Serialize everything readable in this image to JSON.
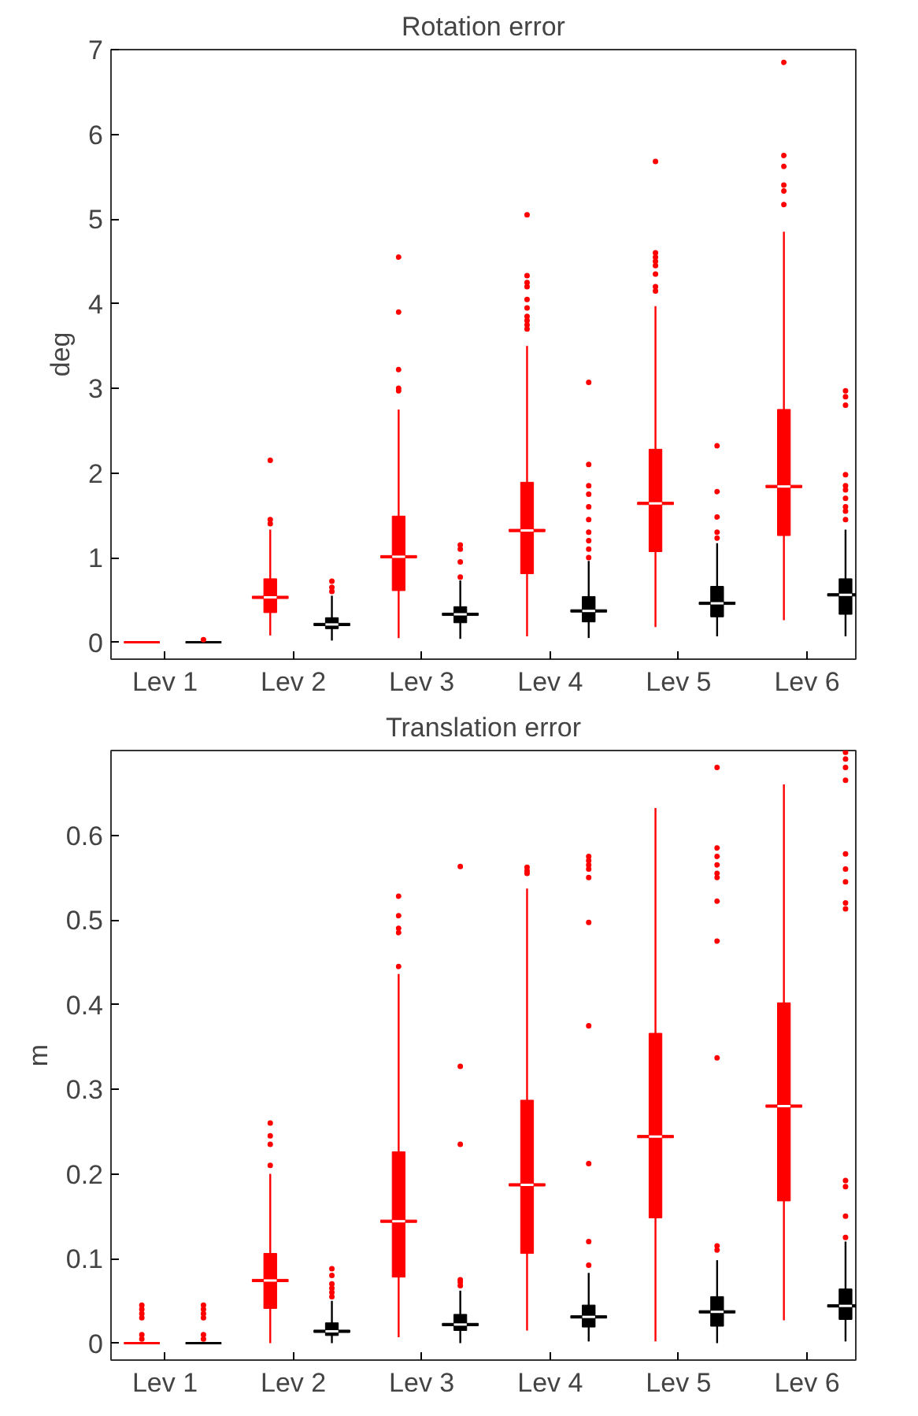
{
  "chart_data": [
    {
      "type": "box",
      "title": "Rotation error",
      "ylabel": "deg",
      "categories": [
        "Lev 1",
        "Lev 2",
        "Lev 3",
        "Lev 4",
        "Lev 5",
        "Lev 6"
      ],
      "ylim": [
        -0.2,
        7
      ],
      "yticks": [
        0,
        1,
        2,
        3,
        4,
        5,
        6,
        7
      ],
      "grid": false,
      "series": [
        {
          "color": "#ff0000",
          "boxes": [
            {
              "low": 0,
              "q1": 0,
              "median": 0,
              "q3": 0,
              "high": 0
            },
            {
              "low": 0.08,
              "q1": 0.35,
              "median": 0.53,
              "q3": 0.75,
              "high": 1.33,
              "outliers": [
                1.4,
                1.45,
                2.15
              ]
            },
            {
              "low": 0.05,
              "q1": 0.61,
              "median": 1.01,
              "q3": 1.49,
              "high": 2.75,
              "outliers": [
                2.97,
                3.0,
                3.22,
                3.9,
                4.55
              ]
            },
            {
              "low": 0.07,
              "q1": 0.81,
              "median": 1.32,
              "q3": 1.89,
              "high": 3.5,
              "outliers": [
                3.7,
                3.75,
                3.8,
                3.85,
                3.95,
                4.05,
                4.2,
                4.25,
                4.33,
                5.05
              ]
            },
            {
              "low": 0.18,
              "q1": 1.07,
              "median": 1.64,
              "q3": 2.28,
              "high": 3.97,
              "outliers": [
                4.15,
                4.2,
                4.35,
                4.45,
                4.5,
                4.55,
                4.6,
                5.68
              ]
            },
            {
              "low": 0.26,
              "q1": 1.26,
              "median": 1.84,
              "q3": 2.75,
              "high": 4.85,
              "outliers": [
                5.17,
                5.33,
                5.4,
                5.62,
                5.75,
                6.85
              ]
            }
          ]
        },
        {
          "color": "#000000",
          "boxes": [
            {
              "low": 0,
              "q1": 0,
              "median": 0,
              "q3": 0,
              "high": 0,
              "outliers": [
                0.03
              ]
            },
            {
              "low": 0.02,
              "q1": 0.16,
              "median": 0.21,
              "q3": 0.29,
              "high": 0.55,
              "outliers": [
                0.6,
                0.65,
                0.72
              ]
            },
            {
              "low": 0.04,
              "q1": 0.23,
              "median": 0.33,
              "q3": 0.42,
              "high": 0.73,
              "outliers": [
                0.77,
                0.95,
                1.1,
                1.15
              ]
            },
            {
              "low": 0.05,
              "q1": 0.24,
              "median": 0.37,
              "q3": 0.54,
              "high": 0.96,
              "outliers": [
                1.0,
                1.1,
                1.2,
                1.3,
                1.45,
                1.6,
                1.75,
                1.85,
                2.1,
                3.07
              ]
            },
            {
              "low": 0.07,
              "q1": 0.3,
              "median": 0.46,
              "q3": 0.66,
              "high": 1.17,
              "outliers": [
                1.23,
                1.3,
                1.48,
                1.78,
                2.32
              ]
            },
            {
              "low": 0.07,
              "q1": 0.33,
              "median": 0.56,
              "q3": 0.75,
              "high": 1.33,
              "outliers": [
                1.45,
                1.55,
                1.6,
                1.7,
                1.8,
                1.85,
                1.98,
                2.8,
                2.9,
                2.97
              ]
            }
          ]
        }
      ]
    },
    {
      "type": "box",
      "title": "Translation error",
      "ylabel": "m",
      "categories": [
        "Lev 1",
        "Lev 2",
        "Lev 3",
        "Lev 4",
        "Lev 5",
        "Lev 6"
      ],
      "ylim": [
        -0.02,
        0.7
      ],
      "yticks": [
        0,
        0.1,
        0.2,
        0.3,
        0.4,
        0.5,
        0.6
      ],
      "grid": false,
      "series": [
        {
          "color": "#ff0000",
          "boxes": [
            {
              "low": 0,
              "q1": 0,
              "median": 0,
              "q3": 0,
              "high": 0,
              "outliers": [
                0.005,
                0.01,
                0.03,
                0.035,
                0.04,
                0.045
              ]
            },
            {
              "low": 0,
              "q1": 0.041,
              "median": 0.074,
              "q3": 0.106,
              "high": 0.2,
              "outliers": [
                0.21,
                0.235,
                0.245,
                0.26
              ]
            },
            {
              "low": 0.007,
              "q1": 0.078,
              "median": 0.144,
              "q3": 0.226,
              "high": 0.436,
              "outliers": [
                0.445,
                0.485,
                0.49,
                0.505,
                0.528
              ]
            },
            {
              "low": 0.015,
              "q1": 0.106,
              "median": 0.187,
              "q3": 0.287,
              "high": 0.537,
              "outliers": [
                0.555,
                0.558,
                0.562
              ]
            },
            {
              "low": 0.002,
              "q1": 0.148,
              "median": 0.244,
              "q3": 0.366,
              "high": 0.632
            },
            {
              "low": 0.027,
              "q1": 0.168,
              "median": 0.28,
              "q3": 0.402,
              "high": 0.66
            }
          ]
        },
        {
          "color": "#000000",
          "boxes": [
            {
              "low": 0,
              "q1": 0,
              "median": 0,
              "q3": 0,
              "high": 0,
              "outliers": [
                0.005,
                0.01,
                0.03,
                0.035,
                0.04,
                0.045
              ]
            },
            {
              "low": 0,
              "q1": 0.009,
              "median": 0.014,
              "q3": 0.024,
              "high": 0.05,
              "outliers": [
                0.055,
                0.06,
                0.065,
                0.07,
                0.08,
                0.088
              ]
            },
            {
              "low": 0,
              "q1": 0.015,
              "median": 0.022,
              "q3": 0.034,
              "high": 0.062,
              "outliers": [
                0.068,
                0.072,
                0.075,
                0.235,
                0.327,
                0.563
              ]
            },
            {
              "low": 0.002,
              "q1": 0.019,
              "median": 0.031,
              "q3": 0.045,
              "high": 0.083,
              "outliers": [
                0.092,
                0.12,
                0.212,
                0.375,
                0.497,
                0.55,
                0.56,
                0.565,
                0.57,
                0.575
              ]
            },
            {
              "low": 0,
              "q1": 0.02,
              "median": 0.037,
              "q3": 0.055,
              "high": 0.098,
              "outliers": [
                0.11,
                0.115,
                0.337,
                0.475,
                0.522,
                0.55,
                0.555,
                0.565,
                0.575,
                0.585,
                0.68
              ]
            },
            {
              "low": 0.002,
              "q1": 0.028,
              "median": 0.044,
              "q3": 0.064,
              "high": 0.12,
              "outliers": [
                0.125,
                0.15,
                0.185,
                0.192,
                0.513,
                0.52,
                0.545,
                0.56,
                0.578,
                0.665,
                0.68,
                0.69,
                0.698
              ]
            }
          ]
        }
      ]
    }
  ]
}
